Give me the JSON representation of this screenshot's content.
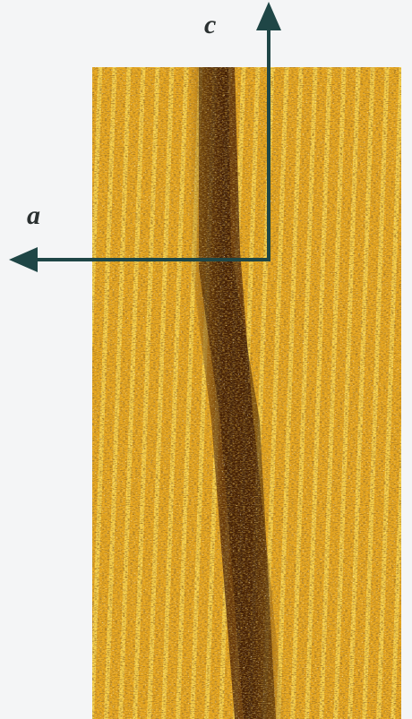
{
  "axes": {
    "horizontal": "a",
    "vertical": "c"
  }
}
